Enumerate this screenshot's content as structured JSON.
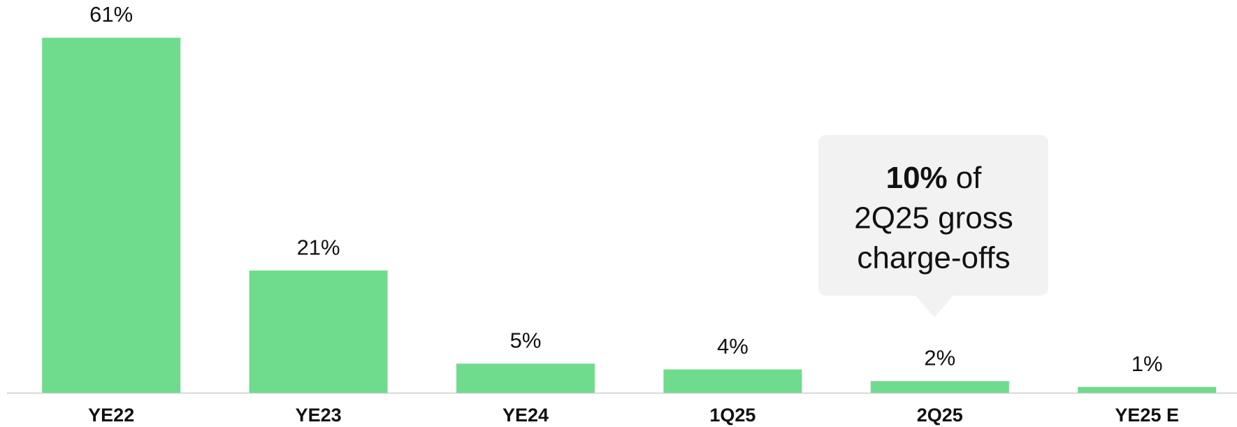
{
  "chart_data": {
    "type": "bar",
    "categories": [
      "YE22",
      "YE23",
      "YE24",
      "1Q25",
      "2Q25",
      "YE25 E"
    ],
    "values": [
      61,
      21,
      5,
      4,
      2,
      1
    ],
    "value_labels": [
      "61%",
      "21%",
      "5%",
      "4%",
      "2%",
      "1%"
    ],
    "color": "#6fdb8c",
    "annotation": {
      "emphasis": "10%",
      "lines": [
        "of",
        "2Q25 gross",
        "charge-offs"
      ]
    }
  }
}
